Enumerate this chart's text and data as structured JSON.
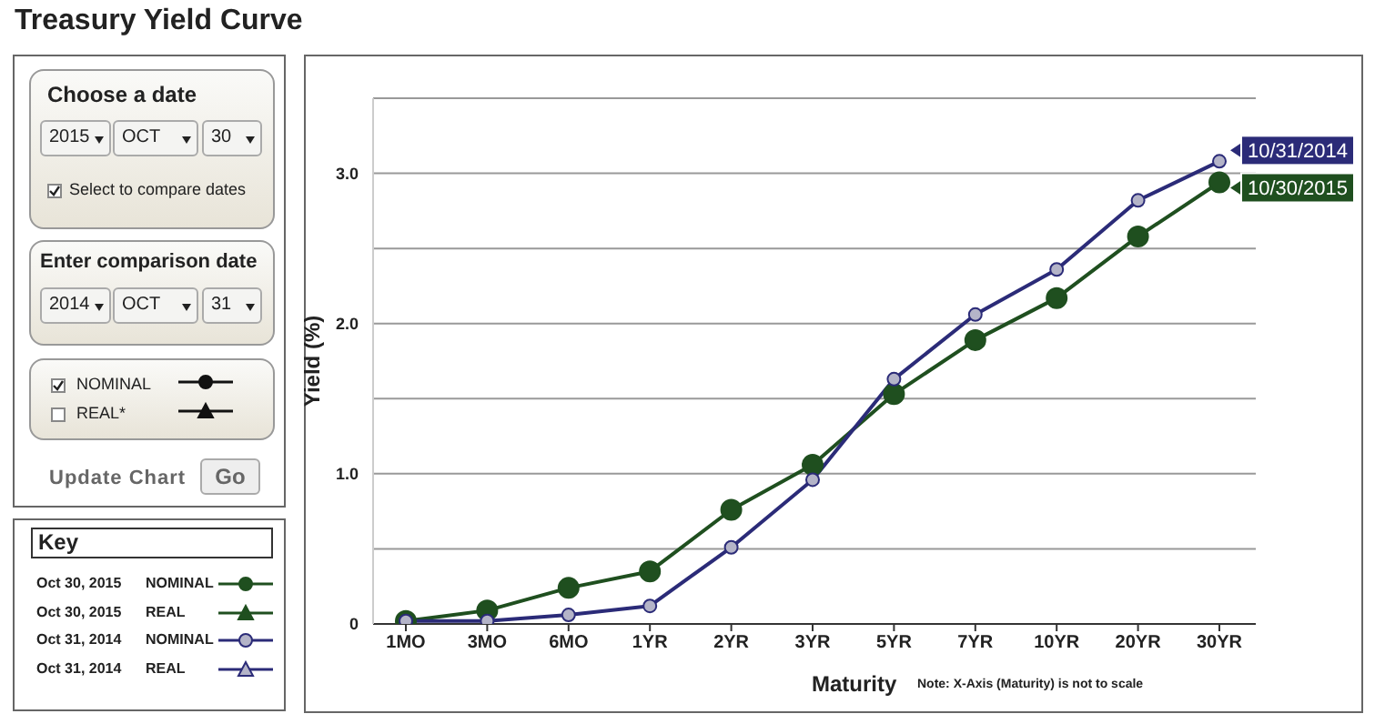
{
  "chart_data": {
    "type": "line",
    "title": "Treasury Yield Curve",
    "xlabel": "Maturity",
    "ylabel": "Yield (%)",
    "categories": [
      "1MO",
      "3MO",
      "6MO",
      "1YR",
      "2YR",
      "3YR",
      "5YR",
      "7YR",
      "10YR",
      "20YR",
      "30YR"
    ],
    "series": [
      {
        "name": "10/30/2015",
        "color": "#1f4f1f",
        "values": [
          0.02,
          0.09,
          0.24,
          0.35,
          0.76,
          1.06,
          1.53,
          1.89,
          2.17,
          2.58,
          2.94
        ]
      },
      {
        "name": "10/31/2014",
        "color": "#2b2b78",
        "values": [
          0.02,
          0.02,
          0.06,
          0.12,
          0.51,
          0.96,
          1.63,
          2.06,
          2.36,
          2.82,
          3.08
        ]
      }
    ],
    "ylim": [
      0,
      3.5
    ],
    "yticks": [
      0,
      {
        "value": 0.5,
        "label": null
      },
      {
        "value": 1,
        "label": "1.0"
      },
      {
        "value": 1.5,
        "label": null
      },
      {
        "value": 2,
        "label": "2.0"
      },
      {
        "value": 2.5,
        "label": null
      },
      {
        "value": 3,
        "label": "3.0"
      },
      {
        "value": 3.5,
        "label": null
      }
    ],
    "grid": "y",
    "legend": "right",
    "marker": "circle",
    "line_style": "solid",
    "annotations": [
      "Choose a date",
      "2015",
      "OCT",
      "30",
      "Select to compare dates",
      "Enter comparison date",
      "2014",
      "OCT",
      "31",
      "NOMINAL",
      "REAL*",
      "Update Chart",
      "Go",
      "Key",
      "Oct 30, 2015",
      "NOMINAL",
      "Oct 30, 2015",
      "REAL",
      "Oct 31, 2014",
      "NOMINAL",
      "Oct 31, 2014",
      "REAL",
      "Note: X-Axis (Maturity) is not to scale"
    ]
  }
}
